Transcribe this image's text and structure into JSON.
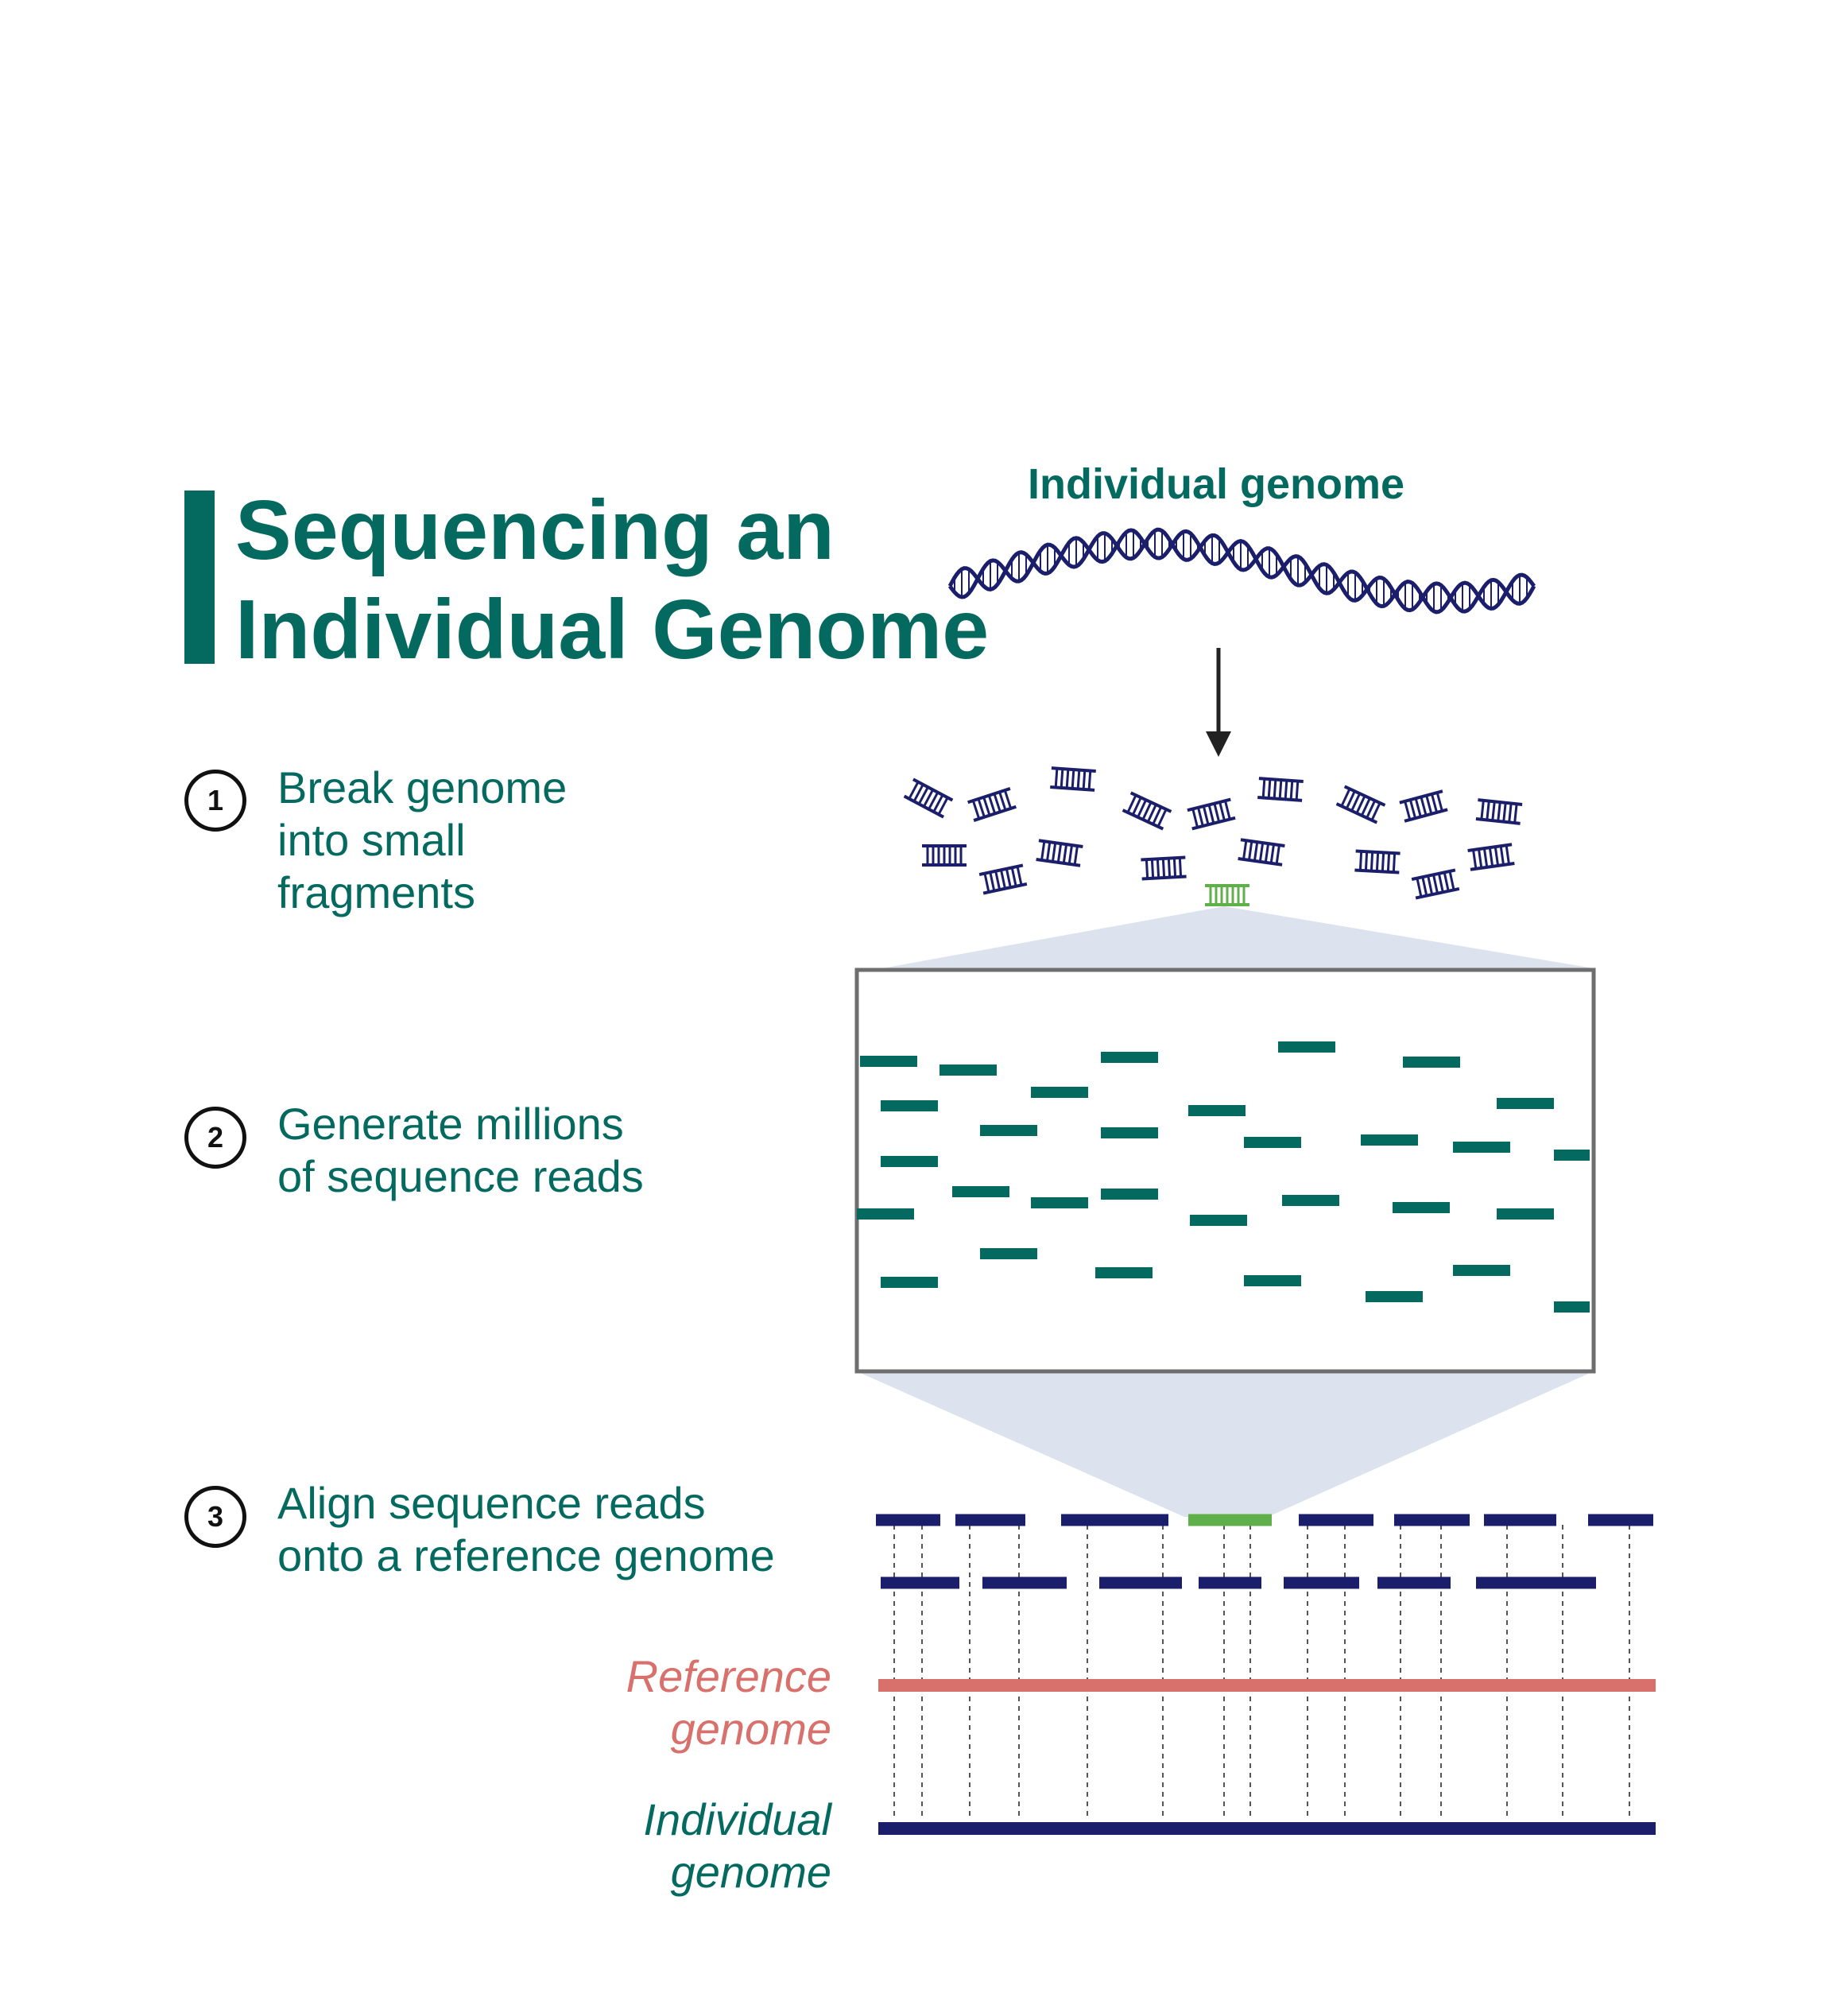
{
  "title": {
    "line1": "Sequencing an",
    "line2": "Individual Genome"
  },
  "top_label": "Individual genome",
  "steps": [
    {
      "number": "1",
      "lines": [
        "Break genome",
        "into small",
        "fragments"
      ]
    },
    {
      "number": "2",
      "lines": [
        "Generate millions",
        "of sequence reads"
      ]
    },
    {
      "number": "3",
      "lines": [
        "Align sequence reads",
        "onto a reference genome"
      ]
    }
  ],
  "reference_label": {
    "line1": "Reference",
    "line2": "genome"
  },
  "individual_label": {
    "line1": "Individual",
    "line2": "genome"
  },
  "colors": {
    "teal": "#046a60",
    "navy": "#1b1f6b",
    "highlight_green": "#5fb04a",
    "reference_red": "#d8716b",
    "zoom_fill": "#dce3ee",
    "box_border": "#6e6e6e",
    "arrow": "#222222"
  }
}
